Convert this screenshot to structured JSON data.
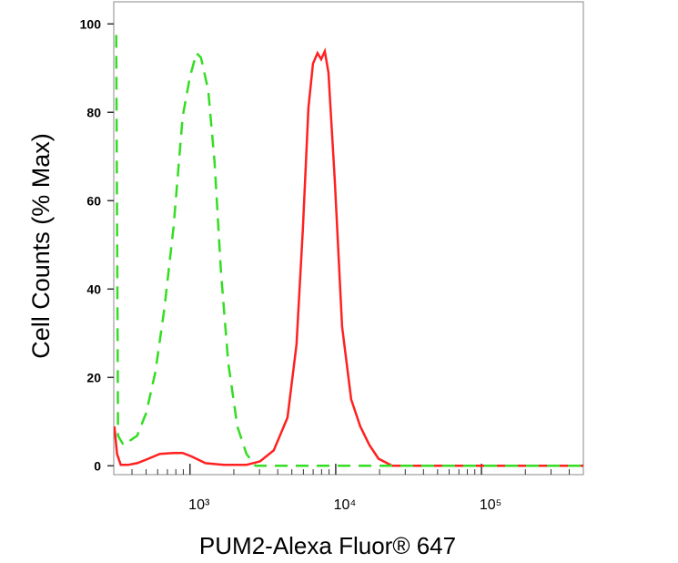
{
  "chart_data": {
    "type": "line",
    "xlabel": "PUM2-Alexa Fluor® 647",
    "ylabel": "Cell Counts (% Max)",
    "xscale": "log",
    "xlim": [
      300,
      500000
    ],
    "ylim": [
      -2,
      105
    ],
    "xticks": [
      {
        "value": 1000,
        "label": "10³"
      },
      {
        "value": 10000,
        "label": "10⁴"
      },
      {
        "value": 100000,
        "label": "10⁵"
      }
    ],
    "xminorticks": [
      400,
      500,
      600,
      700,
      800,
      900,
      2000,
      3000,
      4000,
      5000,
      6000,
      7000,
      8000,
      9000,
      20000,
      30000,
      40000,
      50000,
      60000,
      70000,
      80000,
      90000,
      200000,
      300000,
      400000
    ],
    "yticks": [
      0,
      20,
      40,
      60,
      80,
      100
    ],
    "series": [
      {
        "color": "#ff2020",
        "dash": false,
        "x": [
          303,
          316,
          335,
          376,
          434,
          501,
          622,
          772,
          891,
          1029,
          1277,
          1703,
          2441,
          3030,
          3758,
          4667,
          5384,
          5957,
          6494,
          6980,
          7499,
          7943,
          8414,
          8913,
          9860,
          11066,
          12773,
          14750,
          17022,
          19660,
          24414,
          500000
        ],
        "values": [
          8.9,
          2.7,
          0.2,
          0.2,
          0.6,
          1.4,
          2.7,
          2.9,
          2.9,
          2.1,
          0.6,
          0.2,
          0.2,
          1.0,
          3.5,
          10.9,
          27.4,
          54,
          81,
          91,
          93.4,
          92,
          93.8,
          89,
          64.5,
          31.5,
          15,
          8.9,
          4.7,
          1.6,
          0,
          0
        ]
      },
      {
        "color": "#33dd22",
        "dash": true,
        "x": [
          312,
          321,
          350,
          434,
          501,
          579,
          668,
          772,
          891,
          1000,
          1106,
          1189,
          1334,
          1475,
          1632,
          1830,
          2113,
          2441,
          2818,
          500000
        ],
        "values": [
          97.5,
          6.8,
          4.7,
          6.8,
          12,
          21.2,
          35.7,
          54,
          79,
          88,
          93.4,
          92.4,
          85,
          68.7,
          43.9,
          23.3,
          8.9,
          2.7,
          0,
          0
        ]
      }
    ]
  }
}
